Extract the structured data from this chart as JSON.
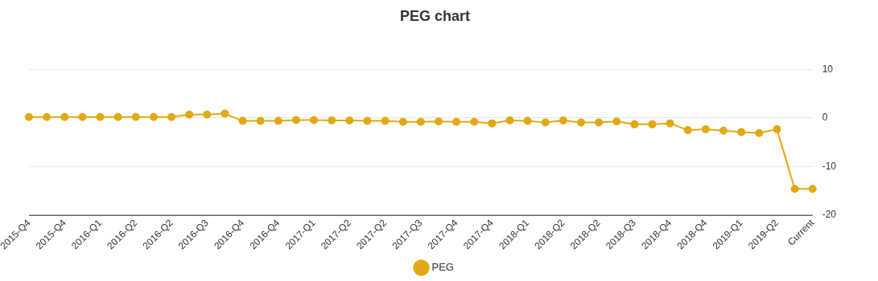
{
  "chart_data": {
    "type": "line",
    "title": "PEG chart",
    "categories": [
      "2015-Q4",
      null,
      "2015-Q4",
      null,
      "2016-Q1",
      null,
      "2016-Q2",
      null,
      "2016-Q2",
      null,
      "2016-Q3",
      null,
      "2016-Q4",
      null,
      "2016-Q4",
      null,
      "2017-Q1",
      null,
      "2017-Q2",
      null,
      "2017-Q2",
      null,
      "2017-Q3",
      null,
      "2017-Q4",
      null,
      "2017-Q4",
      null,
      "2018-Q1",
      null,
      "2018-Q2",
      null,
      "2018-Q2",
      null,
      "2018-Q3",
      null,
      "2018-Q4",
      null,
      "2018-Q4",
      null,
      "2019-Q1",
      null,
      "2019-Q2",
      null,
      "Current"
    ],
    "series": [
      {
        "name": "PEG",
        "color": "#e0a914",
        "values": [
          0.2,
          0.2,
          0.2,
          0.2,
          0.2,
          0.2,
          0.2,
          0.2,
          0.2,
          0.7,
          0.7,
          0.9,
          -0.6,
          -0.6,
          -0.6,
          -0.4,
          -0.4,
          -0.5,
          -0.5,
          -0.6,
          -0.6,
          -0.8,
          -0.8,
          -0.7,
          -0.8,
          -0.8,
          -1.1,
          -0.5,
          -0.6,
          -0.9,
          -0.5,
          -0.9,
          -0.9,
          -0.7,
          -1.3,
          -1.3,
          -1.1,
          -2.5,
          -2.3,
          -2.6,
          -2.9,
          -3.1,
          -2.3,
          -14.6,
          -14.6
        ]
      }
    ],
    "ylim": [
      -20,
      10
    ],
    "yticks": [
      -20,
      -10,
      0,
      10
    ],
    "grid": "y",
    "legend": "bottom",
    "marker": "circle",
    "line_style": "solid"
  }
}
